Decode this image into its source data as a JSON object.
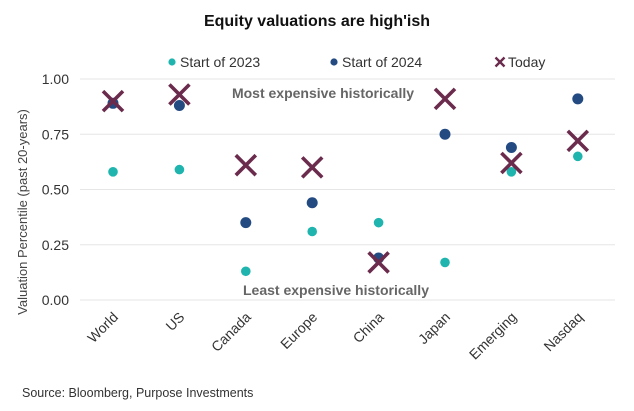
{
  "chart_data": {
    "type": "scatter",
    "title": "Equity valuations are high'ish",
    "ylabel": "Valuation Percentile (past 20-years)",
    "xlabel": "",
    "categories": [
      "World",
      "US",
      "Canada",
      "Europe",
      "China",
      "Japan",
      "Emerging",
      "Nasdaq"
    ],
    "ylim": [
      0,
      1
    ],
    "yticks": [
      "0.00",
      "0.25",
      "0.50",
      "0.75",
      "1.00"
    ],
    "grid": true,
    "legend_position": "top",
    "series": [
      {
        "name": "Start of 2023",
        "marker": "dot",
        "color": "#1fb5ae",
        "values": [
          0.58,
          0.59,
          0.13,
          0.31,
          0.35,
          0.17,
          0.58,
          0.65
        ]
      },
      {
        "name": "Start of 2024",
        "marker": "dot",
        "color": "#234b82",
        "values": [
          0.89,
          0.88,
          0.35,
          0.44,
          0.19,
          0.75,
          0.69,
          0.91
        ]
      },
      {
        "name": "Today",
        "marker": "x",
        "color": "#6b2b4d",
        "values": [
          0.9,
          0.93,
          0.61,
          0.6,
          0.17,
          0.91,
          0.62,
          0.72
        ]
      }
    ],
    "annotations": {
      "top": "Most expensive historically",
      "bottom": "Least expensive historically"
    },
    "source": "Source: Bloomberg, Purpose Investments"
  }
}
